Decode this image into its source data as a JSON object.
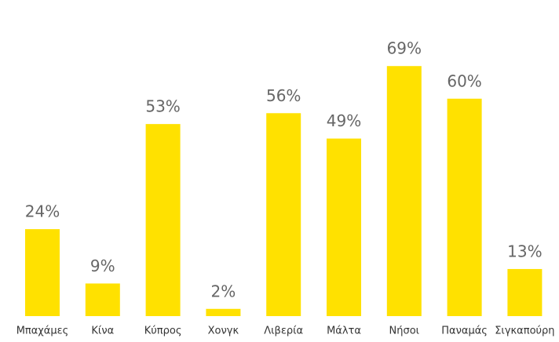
{
  "chart_data": {
    "type": "bar",
    "categories": [
      "Μπαχάμες",
      "Κίνα",
      "Κύπρος",
      "Χονγκ",
      "Λιβερία",
      "Μάλτα",
      "Νήσοι",
      "Παναμάς",
      "Σιγκαπούρη"
    ],
    "values": [
      24,
      9,
      53,
      2,
      56,
      49,
      69,
      60,
      13
    ],
    "value_labels": [
      "24%",
      "9%",
      "53%",
      "2%",
      "56%",
      "49%",
      "69%",
      "60%",
      "13%"
    ],
    "color": "#ffe100"
  }
}
